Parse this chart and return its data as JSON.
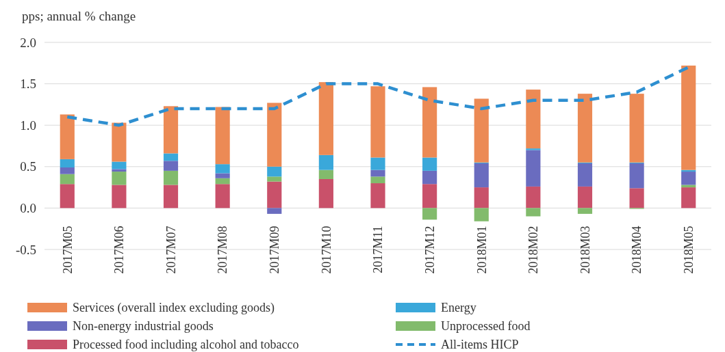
{
  "chart_data": {
    "type": "bar",
    "stacked": true,
    "ylabel": "pps; annual % change",
    "categories": [
      "2017M05",
      "2017M06",
      "2017M07",
      "2017M08",
      "2017M09",
      "2017M10",
      "2017M11",
      "2017M12",
      "2018M01",
      "2018M02",
      "2018M03",
      "2018M04",
      "2018M05"
    ],
    "series": [
      {
        "name": "Processed food including alcohol and tobacco",
        "color": "#c9516a",
        "values": [
          0.29,
          0.28,
          0.28,
          0.29,
          0.32,
          0.35,
          0.3,
          0.29,
          0.25,
          0.26,
          0.26,
          0.24,
          0.25
        ]
      },
      {
        "name": "Unprocessed food",
        "color": "#82bb6c",
        "values": [
          0.12,
          0.16,
          0.17,
          0.07,
          0.06,
          0.11,
          0.08,
          -0.14,
          -0.16,
          -0.1,
          -0.07,
          -0.01,
          0.03
        ]
      },
      {
        "name": "Non-energy industrial goods",
        "color": "#6a6cbf",
        "values": [
          0.08,
          0.03,
          0.12,
          0.06,
          -0.07,
          0,
          0.08,
          0.16,
          0.29,
          0.44,
          0.28,
          0.3,
          0.16
        ]
      },
      {
        "name": "Energy",
        "color": "#3aa8da",
        "values": [
          0.1,
          0.09,
          0.09,
          0.11,
          0.12,
          0.18,
          0.15,
          0.16,
          0.01,
          0.02,
          0.01,
          0.01,
          0.02
        ]
      },
      {
        "name": "Services (overall index excluding goods)",
        "color": "#ec8a55",
        "values": [
          0.54,
          0.47,
          0.57,
          0.69,
          0.77,
          0.88,
          0.86,
          0.85,
          0.77,
          0.71,
          0.83,
          0.83,
          1.26
        ]
      },
      {
        "name": "All-items HICP",
        "type": "line",
        "line_style": "dashed",
        "color": "#2e8fd0",
        "values": [
          1.1,
          1.0,
          1.2,
          1.2,
          1.2,
          1.5,
          1.5,
          1.3,
          1.2,
          1.3,
          1.3,
          1.4,
          1.7
        ]
      }
    ],
    "ylim": [
      -0.5,
      2.0
    ],
    "yticks": [
      {
        "value": -0.5,
        "label": "-0.5"
      },
      {
        "value": 0,
        "label": "0.0"
      },
      {
        "value": 0.5,
        "label": "0.5"
      },
      {
        "value": 1,
        "label": "1.0"
      },
      {
        "value": 1.5,
        "label": "1.5"
      },
      {
        "value": 2,
        "label": "2.0"
      }
    ],
    "grid": "y",
    "legend": "bottom"
  }
}
